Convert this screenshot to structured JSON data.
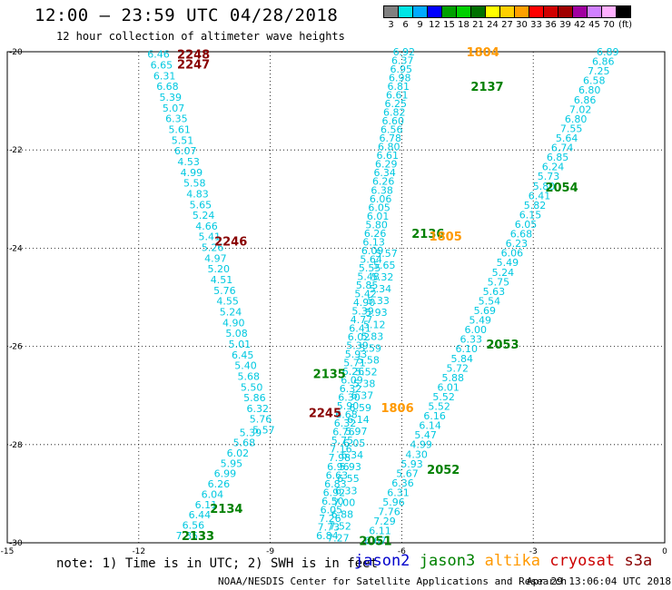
{
  "title": "12:00 – 23:59 UTC 04/28/2018",
  "subtitle": "12 hour collection of altimeter wave heights",
  "colorbar": {
    "colors": [
      "#808080",
      "#00e5e5",
      "#00aaff",
      "#0000ff",
      "#00a000",
      "#00d000",
      "#007000",
      "#ffff00",
      "#ffd000",
      "#ffa000",
      "#ff0000",
      "#d00000",
      "#a00000",
      "#a000a0",
      "#d080ff",
      "#ffb0ff",
      "#000000"
    ],
    "labels": [
      "3",
      "6",
      "9",
      "12",
      "15",
      "18",
      "21",
      "24",
      "27",
      "30",
      "33",
      "36",
      "39",
      "42",
      "45",
      "70",
      "(ft)"
    ]
  },
  "axes": {
    "x_ticks": [
      "-15",
      "-12",
      "-9",
      "-6",
      "-3",
      "0"
    ],
    "y_ticks": [
      "-20",
      "-22",
      "-24",
      "-26",
      "-28",
      "-30"
    ]
  },
  "footnote": "note: 1) Time is in UTC; 2) SWH is in feet",
  "legend": [
    {
      "name": "jason2",
      "color": "#0000cc"
    },
    {
      "name": "jason3",
      "color": "#008000"
    },
    {
      "name": "altika",
      "color": "#ff9900"
    },
    {
      "name": "cryosat",
      "color": "#cc0000"
    },
    {
      "name": "s3a",
      "color": "#880000"
    }
  ],
  "credit": "NOAA/NESDIS Center for Satellite Applications and Research",
  "stamp": "Apr 29 13:06:04 UTC 2018",
  "map_data": {
    "lon_range": [
      -15,
      0
    ],
    "lat_range": [
      -30,
      -20
    ],
    "point_color": "#00c8e0",
    "tracks": [
      {
        "name": "track-a",
        "values": [
          "6.46",
          "6.65",
          "6.31",
          "6.68",
          "5.39",
          "5.07",
          "6.35",
          "5.61",
          "5.51",
          "6.07",
          "4.53",
          "4.99",
          "5.58",
          "4.83",
          "5.65",
          "5.24",
          "4.66",
          "5.41",
          "5.26",
          "4.97",
          "5.20",
          "4.51",
          "5.76",
          "4.55",
          "5.24",
          "4.90",
          "5.08",
          "5.01",
          "6.45",
          "5.40",
          "5.68",
          "5.50",
          "5.86",
          "6.32",
          "5.76",
          "5.57"
        ],
        "start": [
          -11.55,
          -20.05
        ],
        "end": [
          -9.15,
          -27.7
        ]
      },
      {
        "name": "track-b",
        "values": [
          "5.39",
          "5.68",
          "6.02",
          "5.95",
          "6.99",
          "6.26",
          "6.04",
          "6.11",
          "6.44",
          "6.56",
          "7.35"
        ],
        "start": [
          -9.45,
          -27.75
        ],
        "end": [
          -10.9,
          -29.85
        ]
      },
      {
        "name": "track-c",
        "values": [
          "6.92",
          "6.37",
          "6.95",
          "6.98",
          "6.81",
          "6.61",
          "6.25",
          "6.82",
          "6.60",
          "6.56",
          "6.78",
          "6.80",
          "6.61",
          "6.29",
          "6.34",
          "6.26",
          "6.38",
          "6.06",
          "6.05",
          "6.01",
          "5.80",
          "6.26",
          "6.13",
          "6.09",
          "5.64",
          "5.55",
          "5.48",
          "5.85",
          "5.42",
          "4.90",
          "5.39",
          "4.77",
          "6.41",
          "6.02",
          "5.39",
          "5.93",
          "5.71",
          "6.26",
          "6.09",
          "6.32",
          "6.30",
          "5.90",
          "6.68",
          "6.32",
          "6.76",
          "5.75",
          "7.16",
          "7.98",
          "6.96",
          "6.63",
          "6.83",
          "6.92",
          "6.50",
          "6.05",
          "7.26",
          "7.73",
          "6.84"
        ],
        "start": [
          -5.95,
          -20.0
        ],
        "end": [
          -7.7,
          -29.85
        ]
      },
      {
        "name": "track-d",
        "values": [
          "5.57",
          "5.65",
          "5.32",
          "5.34",
          "5.33",
          "5.93",
          "5.12",
          "5.83",
          "5.59",
          "5.58",
          "5.52",
          "5.38",
          "6.37",
          "6.59",
          "6.14",
          "5.97",
          "6.05",
          "6.34",
          "5.93",
          "6.55",
          "6.33",
          "7.00",
          "6.88",
          "7.52",
          "7.27"
        ],
        "start": [
          -6.35,
          -24.1
        ],
        "end": [
          -7.45,
          -29.9
        ]
      },
      {
        "name": "track-e",
        "values": [
          "6.89",
          "6.86",
          "7.25",
          "6.58",
          "6.80",
          "6.86",
          "7.02",
          "6.80",
          "7.55",
          "5.64",
          "6.74",
          "6.85",
          "6.24",
          "5.73",
          "5.80",
          "6.41",
          "5.82",
          "6.15",
          "6.05",
          "6.68",
          "6.23",
          "6.06",
          "5.49",
          "5.24",
          "5.75",
          "5.63",
          "5.54",
          "5.69",
          "5.49",
          "6.00",
          "6.33",
          "6.10",
          "5.84",
          "5.72",
          "5.88",
          "6.01",
          "5.52",
          "5.52",
          "6.16",
          "6.14",
          "5.47",
          "4.99",
          "4.30",
          "5.93",
          "5.67",
          "6.36",
          "6.31",
          "5.96",
          "7.76",
          "7.29",
          "6.11",
          "6.67"
        ],
        "start": [
          -1.3,
          -20.0
        ],
        "end": [
          -6.6,
          -29.95
        ]
      }
    ],
    "labels": [
      {
        "text": "2248",
        "lon": -10.75,
        "lat": -20.05,
        "color": "#880000"
      },
      {
        "text": "2247",
        "lon": -10.75,
        "lat": -20.25,
        "color": "#880000"
      },
      {
        "text": "1804",
        "lon": -4.15,
        "lat": -20.0,
        "color": "#ff9900"
      },
      {
        "text": "2137",
        "lon": -4.05,
        "lat": -20.7,
        "color": "#008000"
      },
      {
        "text": "2054",
        "lon": -2.35,
        "lat": -22.75,
        "color": "#008000"
      },
      {
        "text": "2136",
        "lon": -5.4,
        "lat": -23.7,
        "color": "#008000"
      },
      {
        "text": "1805",
        "lon": -5.0,
        "lat": -23.75,
        "color": "#ff9900"
      },
      {
        "text": "2246",
        "lon": -9.9,
        "lat": -23.85,
        "color": "#880000"
      },
      {
        "text": "2053",
        "lon": -3.7,
        "lat": -25.95,
        "color": "#008000"
      },
      {
        "text": "2135",
        "lon": -7.65,
        "lat": -26.55,
        "color": "#008000"
      },
      {
        "text": "1806",
        "lon": -6.1,
        "lat": -27.25,
        "color": "#ff9900"
      },
      {
        "text": "2245",
        "lon": -7.75,
        "lat": -27.35,
        "color": "#880000"
      },
      {
        "text": "2052",
        "lon": -5.05,
        "lat": -28.5,
        "color": "#008000"
      },
      {
        "text": "2134",
        "lon": -10.0,
        "lat": -29.3,
        "color": "#008000"
      },
      {
        "text": "2133",
        "lon": -10.65,
        "lat": -29.85,
        "color": "#008000"
      },
      {
        "text": "2051",
        "lon": -6.6,
        "lat": -29.95,
        "color": "#008000"
      }
    ]
  }
}
